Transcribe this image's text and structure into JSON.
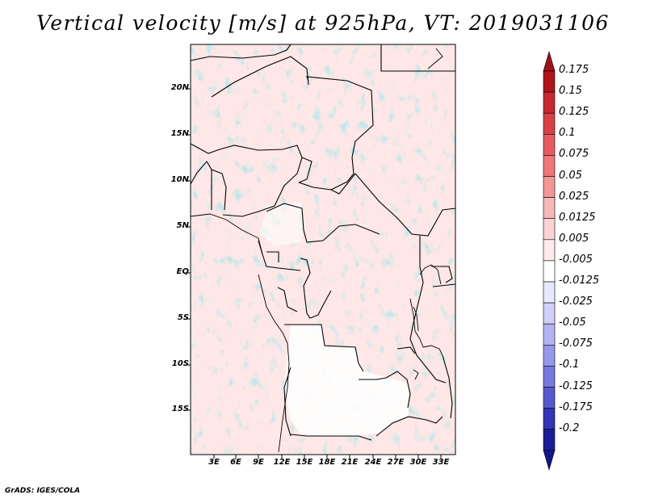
{
  "title": "Vertical velocity [m/s] at 925hPa, VT: 2019031106",
  "credit": "GrADS: IGES/COLA",
  "lat_labels": [
    "20N",
    "15N",
    "10N",
    "5N",
    "EQ",
    "5S",
    "10S",
    "15S"
  ],
  "lon_labels": [
    "3E",
    "6E",
    "9E",
    "12E",
    "15E",
    "18E",
    "21E",
    "24E",
    "27E",
    "30E",
    "33E"
  ],
  "colorbar": {
    "labels": [
      "0.175",
      "0.15",
      "0.125",
      "0.1",
      "0.075",
      "0.05",
      "0.025",
      "0.0125",
      "0.005",
      "-0.005",
      "-0.0125",
      "-0.025",
      "-0.05",
      "-0.075",
      "-0.1",
      "-0.125",
      "-0.175",
      "-0.2"
    ],
    "colors": [
      "#b0141c",
      "#c82832",
      "#d84048",
      "#e45c60",
      "#ec787a",
      "#f29898",
      "#f6b8b8",
      "#fad4d4",
      "#fdeaea",
      "#ffffff",
      "#e8e8fc",
      "#d0d0f8",
      "#b4b4f0",
      "#9898e8",
      "#7878dc",
      "#5858cc",
      "#3434b4",
      "#1c1c98"
    ],
    "top_color": "#a01018",
    "bottom_color": "#14148c"
  }
}
